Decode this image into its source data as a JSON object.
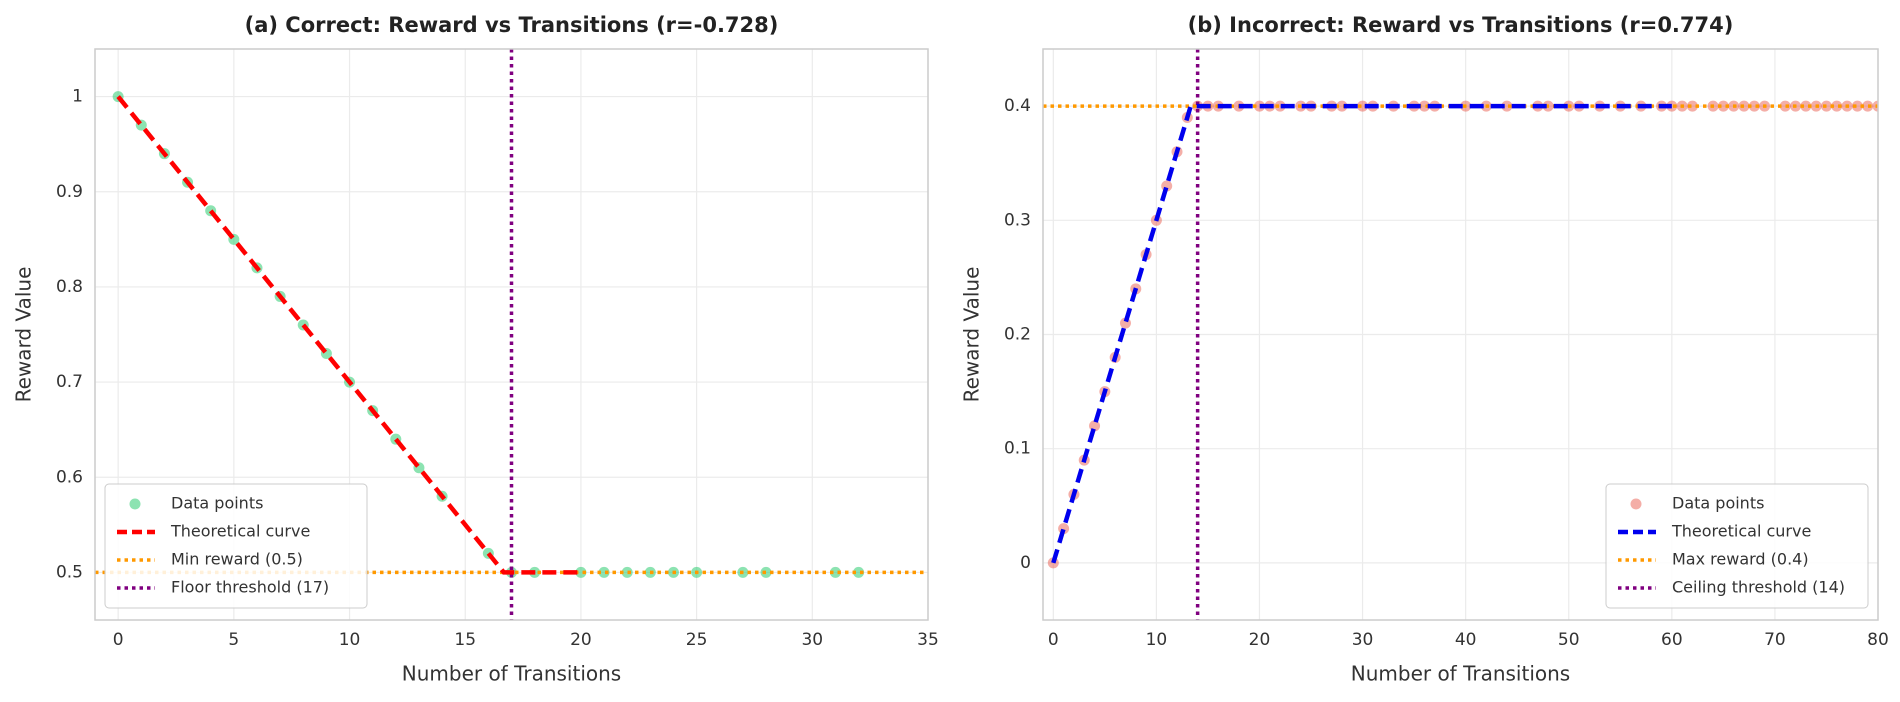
{
  "chart_data": [
    {
      "type": "scatter",
      "title": "(a) Correct: Reward vs Transitions (r=-0.728)",
      "xlabel": "Number of Transitions",
      "ylabel": "Reward Value",
      "xlim": [
        -1,
        35
      ],
      "ylim": [
        0.45,
        1.05
      ],
      "xticks": [
        0,
        5,
        10,
        15,
        20,
        25,
        30,
        35
      ],
      "yticks": [
        0.5,
        0.6,
        0.7,
        0.8,
        0.9,
        1.0
      ],
      "grid": true,
      "legend": "lower left",
      "series": [
        {
          "name": "Data points",
          "type": "scatter",
          "color": "#2ecc71",
          "alpha": 0.55,
          "x": [
            0,
            1,
            2,
            3,
            4,
            5,
            6,
            7,
            8,
            9,
            10,
            11,
            12,
            13,
            14,
            16,
            17,
            18,
            20,
            21,
            22,
            23,
            24,
            25,
            27,
            28,
            31,
            32
          ],
          "values": [
            1.0,
            0.97,
            0.94,
            0.91,
            0.88,
            0.85,
            0.82,
            0.79,
            0.76,
            0.73,
            0.7,
            0.67,
            0.64,
            0.61,
            0.58,
            0.52,
            0.5,
            0.5,
            0.5,
            0.5,
            0.5,
            0.5,
            0.5,
            0.5,
            0.5,
            0.5,
            0.5,
            0.5
          ]
        },
        {
          "name": "Theoretical curve",
          "type": "line",
          "color": "#ff0000",
          "dash": "14 7",
          "x": [
            0,
            16.67,
            20
          ],
          "values": [
            1.0,
            0.5,
            0.5
          ]
        }
      ],
      "reference_lines": [
        {
          "name": "Min reward (0.5)",
          "orientation": "horizontal",
          "value": 0.5,
          "color": "#ff9900"
        },
        {
          "name": "Floor threshold (17)",
          "orientation": "vertical",
          "value": 17,
          "color": "#800080"
        }
      ]
    },
    {
      "type": "scatter",
      "title": "(b) Incorrect: Reward vs Transitions (r=0.774)",
      "xlabel": "Number of Transitions",
      "ylabel": "Reward Value",
      "xlim": [
        -1,
        80
      ],
      "ylim": [
        -0.05,
        0.45
      ],
      "xticks": [
        0,
        10,
        20,
        30,
        40,
        50,
        60,
        70,
        80
      ],
      "yticks": [
        0.0,
        0.1,
        0.2,
        0.3,
        0.4
      ],
      "grid": true,
      "legend": "lower right",
      "series": [
        {
          "name": "Data points",
          "type": "scatter",
          "color": "#e74c3c",
          "alpha": 0.45,
          "x": [
            0,
            1,
            2,
            3,
            4,
            5,
            6,
            7,
            8,
            9,
            10,
            11,
            12,
            13,
            14,
            15,
            16,
            18,
            20,
            21,
            22,
            24,
            25,
            27,
            28,
            30,
            31,
            33,
            35,
            36,
            37,
            40,
            42,
            44,
            47,
            48,
            50,
            51,
            53,
            55,
            57,
            59,
            60,
            61,
            62,
            64,
            65,
            66,
            67,
            68,
            69,
            71,
            72,
            73,
            74,
            75,
            76,
            77,
            78,
            79,
            80
          ],
          "values": [
            0.0,
            0.03,
            0.06,
            0.09,
            0.12,
            0.15,
            0.18,
            0.21,
            0.24,
            0.27,
            0.3,
            0.33,
            0.36,
            0.39,
            0.4,
            0.4,
            0.4,
            0.4,
            0.4,
            0.4,
            0.4,
            0.4,
            0.4,
            0.4,
            0.4,
            0.4,
            0.4,
            0.4,
            0.4,
            0.4,
            0.4,
            0.4,
            0.4,
            0.4,
            0.4,
            0.4,
            0.4,
            0.4,
            0.4,
            0.4,
            0.4,
            0.4,
            0.4,
            0.4,
            0.4,
            0.4,
            0.4,
            0.4,
            0.4,
            0.4,
            0.4,
            0.4,
            0.4,
            0.4,
            0.4,
            0.4,
            0.4,
            0.4,
            0.4,
            0.4,
            0.4
          ]
        },
        {
          "name": "Theoretical curve",
          "type": "line",
          "color": "#0000ee",
          "dash": "14 7",
          "x": [
            0,
            13.33,
            60
          ],
          "values": [
            0.0,
            0.4,
            0.4
          ]
        }
      ],
      "reference_lines": [
        {
          "name": "Max reward (0.4)",
          "orientation": "horizontal",
          "value": 0.4,
          "color": "#ff9900"
        },
        {
          "name": "Ceiling threshold (14)",
          "orientation": "vertical",
          "value": 14,
          "color": "#800080"
        }
      ]
    }
  ]
}
